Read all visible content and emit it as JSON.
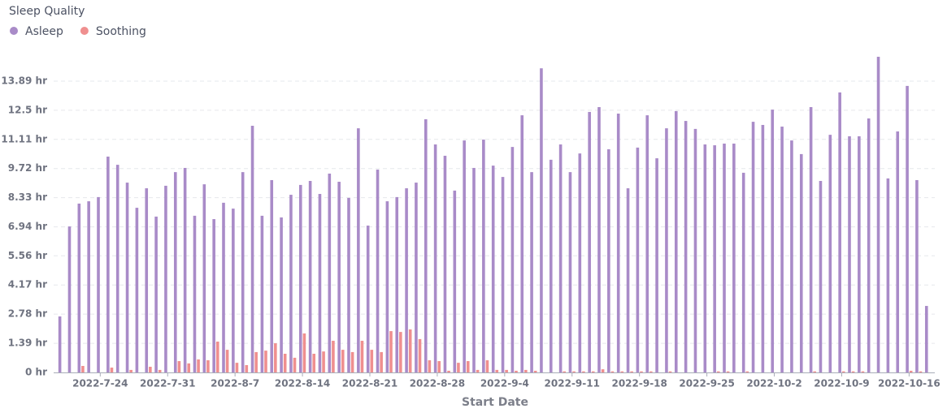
{
  "chart_data": {
    "type": "bar",
    "title": "Sleep Quality",
    "x_label": "Start Date",
    "categories": [
      null,
      null,
      null,
      null,
      "2022-7-24",
      null,
      null,
      null,
      null,
      null,
      null,
      "2022-7-31",
      null,
      null,
      null,
      null,
      null,
      null,
      "2022-8-7",
      null,
      null,
      null,
      null,
      null,
      null,
      "2022-8-14",
      null,
      null,
      null,
      null,
      null,
      null,
      "2022-8-21",
      null,
      null,
      null,
      null,
      null,
      null,
      "2022-8-28",
      null,
      null,
      null,
      null,
      null,
      null,
      "2022-9-4",
      null,
      null,
      null,
      null,
      null,
      null,
      "2022-9-11",
      null,
      null,
      null,
      null,
      null,
      null,
      "2022-9-18",
      null,
      null,
      null,
      null,
      null,
      null,
      "2022-9-25",
      null,
      null,
      null,
      null,
      null,
      null,
      "2022-10-2",
      null,
      null,
      null,
      null,
      null,
      null,
      "2022-10-9",
      null,
      null,
      null,
      null,
      null,
      null,
      "2022-10-16",
      null,
      null
    ],
    "series": [
      {
        "name": "Asleep",
        "color": "#a98bc8",
        "values": [
          2.67,
          6.96,
          8.05,
          8.16,
          8.36,
          10.29,
          9.9,
          9.05,
          7.85,
          8.78,
          7.43,
          8.9,
          9.55,
          9.75,
          7.47,
          8.97,
          7.31,
          8.09,
          7.81,
          9.55,
          11.76,
          7.47,
          9.17,
          7.39,
          8.47,
          8.94,
          9.13,
          8.51,
          9.48,
          9.09,
          8.32,
          11.64,
          7.0,
          9.67,
          8.16,
          8.36,
          8.78,
          9.05,
          12.07,
          10.87,
          10.33,
          8.67,
          11.06,
          9.75,
          11.1,
          9.86,
          9.32,
          10.75,
          12.26,
          9.55,
          14.5,
          10.14,
          10.87,
          9.55,
          10.44,
          12.42,
          12.65,
          10.64,
          12.34,
          8.78,
          10.72,
          12.26,
          10.21,
          11.64,
          12.46,
          11.99,
          11.61,
          10.87,
          10.83,
          10.91,
          10.91,
          9.52,
          11.95,
          11.8,
          12.53,
          11.72,
          11.06,
          10.41,
          12.65,
          9.13,
          11.33,
          13.35,
          11.26,
          11.26,
          12.11,
          15.05,
          9.25,
          11.49,
          13.66,
          9.17,
          3.17
        ]
      },
      {
        "name": "Soothing",
        "color": "#ef8f8f",
        "values": [
          0,
          0,
          0.31,
          0,
          0,
          0.23,
          0,
          0.12,
          0,
          0.27,
          0.12,
          0,
          0.54,
          0.43,
          0.62,
          0.58,
          1.47,
          1.08,
          0.46,
          0.35,
          0.97,
          1.04,
          1.39,
          0.89,
          0.7,
          1.86,
          0.89,
          1.0,
          1.51,
          1.08,
          0.97,
          1.51,
          1.08,
          0.97,
          1.97,
          1.93,
          2.05,
          1.59,
          0.58,
          0.54,
          0.08,
          0.46,
          0.54,
          0.12,
          0.58,
          0.12,
          0.12,
          0.08,
          0.12,
          0.08,
          0,
          0,
          0.05,
          0.05,
          0.05,
          0.05,
          0.15,
          0.05,
          0.05,
          0.05,
          0.05,
          0.05,
          0,
          0.05,
          0,
          0,
          0,
          0,
          0.05,
          0.05,
          0,
          0.05,
          0,
          0,
          0,
          0,
          0,
          0,
          0.05,
          0,
          0,
          0.05,
          0.05,
          0.05,
          0,
          0,
          0,
          0,
          0.08,
          0.05,
          0
        ]
      }
    ],
    "ylim": [
      0,
      15.3
    ],
    "yticks": [
      {
        "value": 0,
        "label": "0 hr"
      },
      {
        "value": 1.39,
        "label": "1.39 hr"
      },
      {
        "value": 2.78,
        "label": "2.78 hr"
      },
      {
        "value": 4.17,
        "label": "4.17 hr"
      },
      {
        "value": 5.56,
        "label": "5.56 hr"
      },
      {
        "value": 6.94,
        "label": "6.94 hr"
      },
      {
        "value": 8.33,
        "label": "8.33 hr"
      },
      {
        "value": 9.72,
        "label": "9.72 hr"
      },
      {
        "value": 11.11,
        "label": "11.11 hr"
      },
      {
        "value": 12.5,
        "label": "12.5 hr"
      },
      {
        "value": 13.89,
        "label": "13.89 hr"
      }
    ],
    "grid": true
  }
}
